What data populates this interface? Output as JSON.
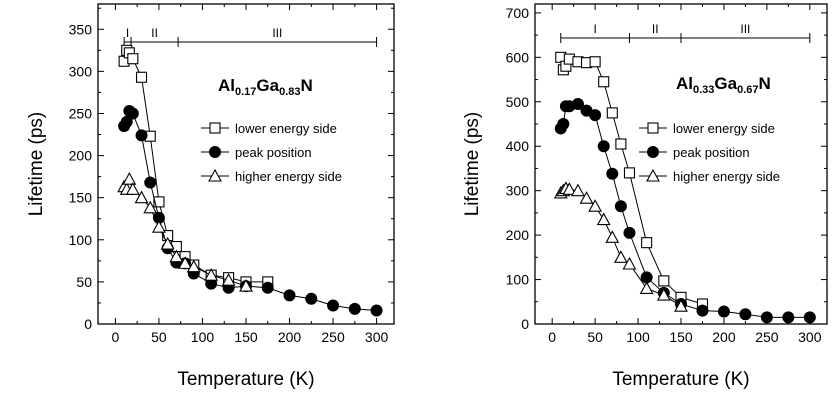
{
  "chart_data": [
    {
      "type": "scatter",
      "composition": {
        "base": [
          "Al",
          "Ga",
          "N"
        ],
        "subscripts": [
          "0.17",
          "0.83"
        ]
      },
      "xlabel": "Temperature (K)",
      "ylabel": "Lifetime (ps)",
      "xlim": [
        -20,
        320
      ],
      "ylim": [
        0,
        380
      ],
      "xticks": [
        "0",
        "50",
        "100",
        "150",
        "200",
        "250",
        "300"
      ],
      "yticks": [
        "0",
        "50",
        "100",
        "150",
        "200",
        "250",
        "300",
        "350"
      ],
      "regions": {
        "labels": [
          "I",
          "II",
          "III"
        ],
        "boundaries_K": [
          10,
          18,
          72,
          300
        ]
      },
      "legend_position": "right",
      "series": [
        {
          "name": "lower energy side",
          "marker": "open-square",
          "x": [
            10,
            13,
            16,
            20,
            30,
            40,
            50,
            60,
            70,
            80,
            90,
            110,
            130,
            150,
            175
          ],
          "y": [
            312,
            325,
            322,
            315,
            293,
            223,
            145,
            105,
            92,
            80,
            70,
            58,
            55,
            50,
            50
          ]
        },
        {
          "name": "peak position",
          "marker": "filled-circle",
          "x": [
            10,
            13,
            16,
            20,
            30,
            40,
            50,
            60,
            70,
            80,
            90,
            110,
            130,
            150,
            175,
            200,
            225,
            250,
            275,
            300
          ],
          "y": [
            235,
            240,
            253,
            250,
            224,
            168,
            126,
            90,
            73,
            72,
            60,
            48,
            43,
            45,
            43,
            34,
            30,
            22,
            18,
            16
          ]
        },
        {
          "name": "higher energy side",
          "marker": "open-triangle",
          "x": [
            10,
            13,
            16,
            20,
            30,
            40,
            50,
            60,
            70,
            80,
            90,
            110,
            130,
            150
          ],
          "y": [
            163,
            160,
            172,
            160,
            150,
            138,
            115,
            95,
            80,
            72,
            68,
            58,
            52,
            45
          ]
        }
      ]
    },
    {
      "type": "scatter",
      "composition": {
        "base": [
          "Al",
          "Ga",
          "N"
        ],
        "subscripts": [
          "0.33",
          "0.67"
        ]
      },
      "xlabel": "Temperature (K)",
      "ylabel": "Lifetime (ps)",
      "xlim": [
        -20,
        320
      ],
      "ylim": [
        0,
        720
      ],
      "xticks": [
        "0",
        "50",
        "100",
        "150",
        "200",
        "250",
        "300"
      ],
      "yticks": [
        "0",
        "100",
        "200",
        "300",
        "400",
        "500",
        "600",
        "700"
      ],
      "regions": {
        "labels": [
          "I",
          "II",
          "III"
        ],
        "boundaries_K": [
          10,
          90,
          150,
          300
        ]
      },
      "legend_position": "right",
      "series": [
        {
          "name": "lower energy side",
          "marker": "open-square",
          "x": [
            10,
            13,
            16,
            20,
            30,
            40,
            50,
            60,
            70,
            80,
            90,
            110,
            130,
            150,
            175
          ],
          "y": [
            600,
            572,
            580,
            596,
            590,
            588,
            590,
            545,
            475,
            405,
            340,
            183,
            97,
            60,
            45
          ]
        },
        {
          "name": "peak position",
          "marker": "filled-circle",
          "x": [
            10,
            13,
            16,
            20,
            30,
            40,
            50,
            60,
            70,
            80,
            90,
            110,
            130,
            150,
            175,
            200,
            225,
            250,
            275,
            300
          ],
          "y": [
            440,
            450,
            490,
            490,
            495,
            480,
            470,
            400,
            338,
            265,
            205,
            105,
            70,
            45,
            30,
            28,
            22,
            15,
            15,
            15
          ]
        },
        {
          "name": "higher energy side",
          "marker": "open-triangle",
          "x": [
            10,
            13,
            16,
            20,
            30,
            40,
            50,
            60,
            70,
            80,
            90,
            110,
            130,
            150
          ],
          "y": [
            295,
            300,
            305,
            303,
            300,
            283,
            265,
            235,
            195,
            150,
            135,
            80,
            65,
            40
          ]
        }
      ]
    }
  ]
}
